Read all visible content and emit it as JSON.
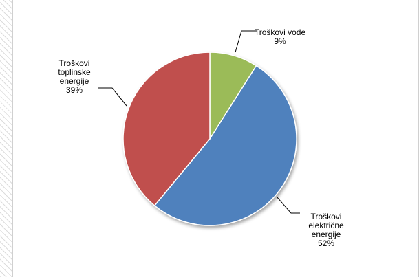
{
  "chart_data": {
    "type": "pie",
    "title": "",
    "start_angle_deg": 0,
    "direction": "clockwise",
    "slices": [
      {
        "label_lines": [
          "Troškovi vode",
          "9%"
        ],
        "value": 9,
        "color": "#9bbb59"
      },
      {
        "label_lines": [
          "Troškovi",
          "električne",
          "energije",
          "52%"
        ],
        "value": 52,
        "color": "#4f81bd"
      },
      {
        "label_lines": [
          "Troškovi",
          "toplinske",
          "energije",
          "39%"
        ],
        "value": 39,
        "color": "#c0504d"
      }
    ],
    "legend": "none"
  }
}
